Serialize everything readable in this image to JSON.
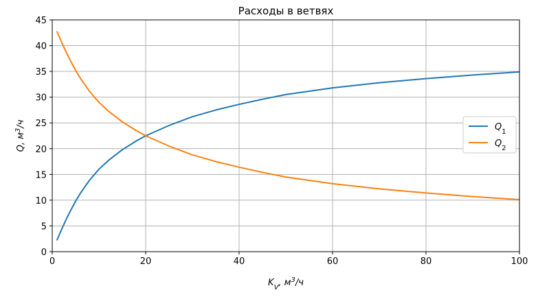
{
  "chart_data": {
    "type": "line",
    "title": "Расходы в ветвях",
    "xlabel": {
      "main": "K",
      "sub": "V",
      "rest": ", м",
      "sup": "3",
      "tail": "/ч"
    },
    "ylabel": {
      "main": "Q, м",
      "sup": "3",
      "tail": "/ч"
    },
    "xlim": [
      0,
      100
    ],
    "ylim": [
      0,
      45
    ],
    "xticks": [
      0,
      20,
      40,
      60,
      80,
      100
    ],
    "yticks": [
      0,
      5,
      10,
      15,
      20,
      25,
      30,
      35,
      40,
      45
    ],
    "grid": true,
    "legend_position": "center-right",
    "x": [
      1,
      2,
      3,
      4,
      5,
      6,
      8,
      10,
      12,
      15,
      18,
      20,
      25,
      30,
      35,
      40,
      45,
      50,
      60,
      70,
      80,
      90,
      100
    ],
    "series": [
      {
        "name": "Q",
        "name_sub": "1",
        "color": "#1f77b4",
        "values": [
          2.2,
          4.3,
          6.3,
          8.1,
          9.8,
          11.3,
          13.9,
          16.0,
          17.7,
          19.8,
          21.5,
          22.5,
          24.5,
          26.2,
          27.5,
          28.6,
          29.6,
          30.5,
          31.8,
          32.8,
          33.6,
          34.3,
          34.9
        ]
      },
      {
        "name": "Q",
        "name_sub": "2",
        "color": "#ff7f0e",
        "values": [
          42.8,
          40.7,
          38.7,
          36.9,
          35.2,
          33.7,
          31.1,
          29.0,
          27.3,
          25.2,
          23.5,
          22.5,
          20.5,
          18.8,
          17.5,
          16.4,
          15.4,
          14.5,
          13.2,
          12.2,
          11.4,
          10.7,
          10.1
        ]
      }
    ]
  }
}
